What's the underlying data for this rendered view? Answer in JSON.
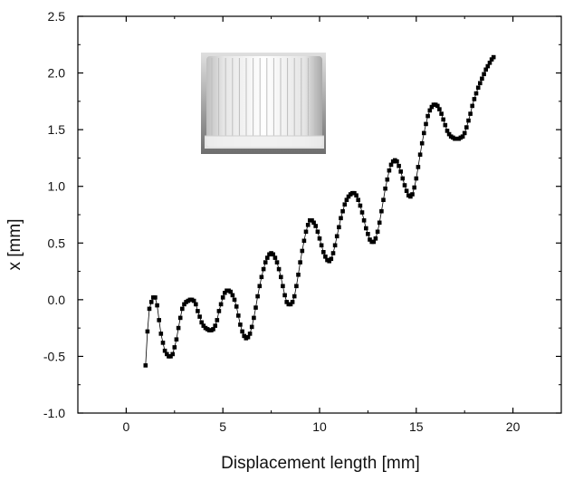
{
  "chart_data": {
    "type": "scatter",
    "xlabel": "Displacement length [mm]",
    "ylabel": "x [mm]",
    "xlim": [
      -2.5,
      22.5
    ],
    "ylim": [
      -1.0,
      2.5
    ],
    "xticks": [
      0,
      5,
      10,
      15,
      20
    ],
    "yticks": [
      -1.0,
      -0.5,
      0.0,
      0.5,
      1.0,
      1.5,
      2.0,
      2.5
    ],
    "xtick_labels": [
      "0",
      "5",
      "10",
      "15",
      "20"
    ],
    "ytick_labels": [
      "-1.0",
      "-0.5",
      "0.0",
      "0.5",
      "1.0",
      "1.5",
      "2.0",
      "2.5"
    ],
    "grid": false,
    "inset_image": "ribbed cylindrical cap photo",
    "series": [
      {
        "marker": "square",
        "color": "#000000",
        "line": true,
        "points": [
          [
            1.0,
            -0.58
          ],
          [
            1.1,
            -0.28
          ],
          [
            1.2,
            -0.08
          ],
          [
            1.3,
            -0.02
          ],
          [
            1.4,
            0.02
          ],
          [
            1.5,
            0.02
          ],
          [
            1.6,
            -0.05
          ],
          [
            1.7,
            -0.18
          ],
          [
            1.8,
            -0.3
          ],
          [
            1.9,
            -0.38
          ],
          [
            2.0,
            -0.45
          ],
          [
            2.1,
            -0.48
          ],
          [
            2.2,
            -0.5
          ],
          [
            2.3,
            -0.5
          ],
          [
            2.4,
            -0.48
          ],
          [
            2.5,
            -0.42
          ],
          [
            2.6,
            -0.35
          ],
          [
            2.7,
            -0.25
          ],
          [
            2.8,
            -0.16
          ],
          [
            2.9,
            -0.08
          ],
          [
            3.0,
            -0.04
          ],
          [
            3.1,
            -0.02
          ],
          [
            3.2,
            -0.01
          ],
          [
            3.3,
            0.0
          ],
          [
            3.4,
            0.0
          ],
          [
            3.5,
            -0.01
          ],
          [
            3.6,
            -0.04
          ],
          [
            3.7,
            -0.1
          ],
          [
            3.8,
            -0.15
          ],
          [
            3.9,
            -0.2
          ],
          [
            4.0,
            -0.23
          ],
          [
            4.1,
            -0.25
          ],
          [
            4.2,
            -0.26
          ],
          [
            4.3,
            -0.27
          ],
          [
            4.4,
            -0.27
          ],
          [
            4.5,
            -0.26
          ],
          [
            4.6,
            -0.23
          ],
          [
            4.7,
            -0.18
          ],
          [
            4.8,
            -0.1
          ],
          [
            4.9,
            -0.04
          ],
          [
            5.0,
            0.02
          ],
          [
            5.1,
            0.06
          ],
          [
            5.2,
            0.08
          ],
          [
            5.3,
            0.08
          ],
          [
            5.4,
            0.07
          ],
          [
            5.5,
            0.04
          ],
          [
            5.6,
            0.0
          ],
          [
            5.7,
            -0.06
          ],
          [
            5.8,
            -0.14
          ],
          [
            5.9,
            -0.22
          ],
          [
            6.0,
            -0.28
          ],
          [
            6.1,
            -0.32
          ],
          [
            6.2,
            -0.34
          ],
          [
            6.3,
            -0.33
          ],
          [
            6.4,
            -0.3
          ],
          [
            6.5,
            -0.24
          ],
          [
            6.6,
            -0.16
          ],
          [
            6.7,
            -0.07
          ],
          [
            6.8,
            0.03
          ],
          [
            6.9,
            0.12
          ],
          [
            7.0,
            0.2
          ],
          [
            7.1,
            0.27
          ],
          [
            7.2,
            0.33
          ],
          [
            7.3,
            0.37
          ],
          [
            7.4,
            0.4
          ],
          [
            7.5,
            0.41
          ],
          [
            7.6,
            0.4
          ],
          [
            7.7,
            0.37
          ],
          [
            7.8,
            0.33
          ],
          [
            7.9,
            0.27
          ],
          [
            8.0,
            0.2
          ],
          [
            8.1,
            0.12
          ],
          [
            8.2,
            0.04
          ],
          [
            8.3,
            -0.02
          ],
          [
            8.4,
            -0.04
          ],
          [
            8.5,
            -0.04
          ],
          [
            8.6,
            -0.02
          ],
          [
            8.7,
            0.03
          ],
          [
            8.8,
            0.12
          ],
          [
            8.9,
            0.22
          ],
          [
            9.0,
            0.33
          ],
          [
            9.1,
            0.43
          ],
          [
            9.2,
            0.52
          ],
          [
            9.3,
            0.6
          ],
          [
            9.4,
            0.66
          ],
          [
            9.5,
            0.7
          ],
          [
            9.6,
            0.7
          ],
          [
            9.7,
            0.68
          ],
          [
            9.8,
            0.65
          ],
          [
            9.9,
            0.6
          ],
          [
            10.0,
            0.54
          ],
          [
            10.1,
            0.48
          ],
          [
            10.2,
            0.42
          ],
          [
            10.3,
            0.38
          ],
          [
            10.4,
            0.35
          ],
          [
            10.5,
            0.34
          ],
          [
            10.6,
            0.36
          ],
          [
            10.7,
            0.41
          ],
          [
            10.8,
            0.48
          ],
          [
            10.9,
            0.56
          ],
          [
            11.0,
            0.64
          ],
          [
            11.1,
            0.72
          ],
          [
            11.2,
            0.78
          ],
          [
            11.3,
            0.84
          ],
          [
            11.4,
            0.88
          ],
          [
            11.5,
            0.91
          ],
          [
            11.6,
            0.93
          ],
          [
            11.7,
            0.94
          ],
          [
            11.8,
            0.94
          ],
          [
            11.9,
            0.92
          ],
          [
            12.0,
            0.88
          ],
          [
            12.1,
            0.83
          ],
          [
            12.2,
            0.77
          ],
          [
            12.3,
            0.7
          ],
          [
            12.4,
            0.63
          ],
          [
            12.5,
            0.58
          ],
          [
            12.6,
            0.53
          ],
          [
            12.7,
            0.51
          ],
          [
            12.8,
            0.51
          ],
          [
            12.9,
            0.54
          ],
          [
            13.0,
            0.6
          ],
          [
            13.1,
            0.68
          ],
          [
            13.2,
            0.78
          ],
          [
            13.3,
            0.88
          ],
          [
            13.4,
            0.98
          ],
          [
            13.5,
            1.06
          ],
          [
            13.6,
            1.14
          ],
          [
            13.7,
            1.19
          ],
          [
            13.8,
            1.22
          ],
          [
            13.9,
            1.23
          ],
          [
            14.0,
            1.22
          ],
          [
            14.1,
            1.18
          ],
          [
            14.2,
            1.13
          ],
          [
            14.3,
            1.07
          ],
          [
            14.4,
            1.01
          ],
          [
            14.5,
            0.96
          ],
          [
            14.6,
            0.92
          ],
          [
            14.7,
            0.91
          ],
          [
            14.8,
            0.93
          ],
          [
            14.9,
            0.99
          ],
          [
            15.0,
            1.07
          ],
          [
            15.1,
            1.17
          ],
          [
            15.2,
            1.28
          ],
          [
            15.3,
            1.38
          ],
          [
            15.4,
            1.47
          ],
          [
            15.5,
            1.55
          ],
          [
            15.6,
            1.62
          ],
          [
            15.7,
            1.67
          ],
          [
            15.8,
            1.7
          ],
          [
            15.9,
            1.72
          ],
          [
            16.0,
            1.72
          ],
          [
            16.1,
            1.71
          ],
          [
            16.2,
            1.68
          ],
          [
            16.3,
            1.64
          ],
          [
            16.4,
            1.59
          ],
          [
            16.5,
            1.54
          ],
          [
            16.6,
            1.49
          ],
          [
            16.7,
            1.46
          ],
          [
            16.8,
            1.44
          ],
          [
            16.9,
            1.43
          ],
          [
            17.0,
            1.42
          ],
          [
            17.1,
            1.42
          ],
          [
            17.2,
            1.42
          ],
          [
            17.3,
            1.43
          ],
          [
            17.4,
            1.44
          ],
          [
            17.5,
            1.47
          ],
          [
            17.6,
            1.52
          ],
          [
            17.7,
            1.58
          ],
          [
            17.8,
            1.64
          ],
          [
            17.9,
            1.71
          ],
          [
            18.0,
            1.77
          ],
          [
            18.1,
            1.82
          ],
          [
            18.2,
            1.87
          ],
          [
            18.3,
            1.91
          ],
          [
            18.4,
            1.95
          ],
          [
            18.5,
            1.99
          ],
          [
            18.6,
            2.03
          ],
          [
            18.7,
            2.06
          ],
          [
            18.8,
            2.09
          ],
          [
            18.9,
            2.12
          ],
          [
            19.0,
            2.14
          ]
        ]
      }
    ]
  }
}
